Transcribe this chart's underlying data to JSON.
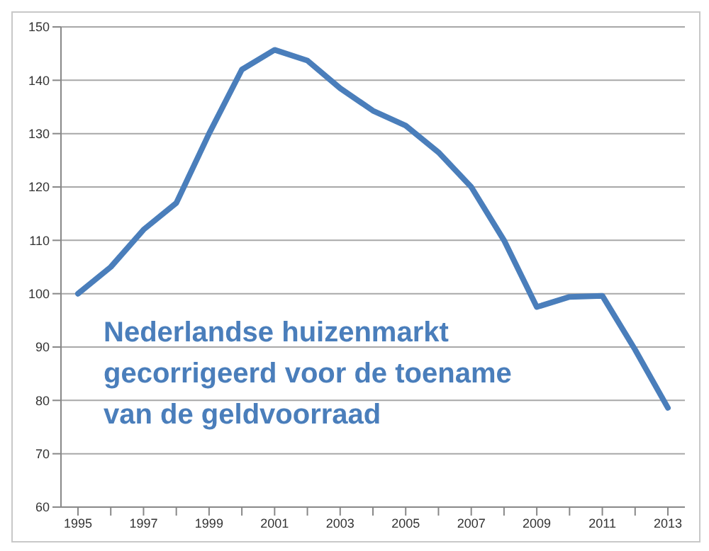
{
  "chart_data": {
    "type": "line",
    "categories": [
      "1995",
      null,
      "1997",
      null,
      "1999",
      null,
      "2001",
      null,
      "2003",
      null,
      "2005",
      null,
      "2007",
      null,
      "2009",
      null,
      "2011",
      null,
      "2013"
    ],
    "series": [
      {
        "color": "#4a7ebb",
        "values": [
          100,
          105,
          112,
          117,
          130,
          142,
          145.7,
          143.7,
          138.5,
          134.3,
          131.5,
          126.5,
          120,
          110,
          97.5,
          99.4,
          99.6,
          89.5,
          78.6
        ]
      }
    ],
    "ylim": [
      60,
      150
    ],
    "yticks": [
      60,
      70,
      80,
      90,
      100,
      110,
      120,
      130,
      140,
      150
    ],
    "grid": "y",
    "legend": false,
    "marker": "none",
    "line_style": "solid",
    "annotations": [
      "Nederlandse huizenmarkt gecorrigeerd voor de toename van de geldvoorraad"
    ]
  }
}
